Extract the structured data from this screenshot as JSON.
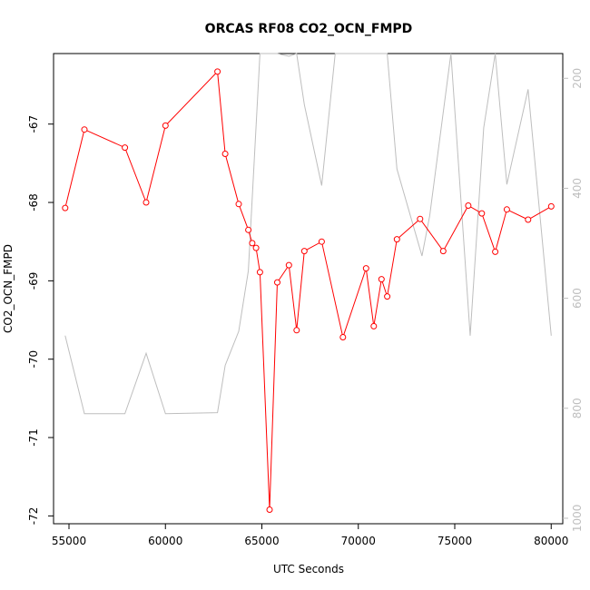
{
  "chart_data": {
    "type": "line",
    "title": "ORCAS RF08 CO2_OCN_FMPD",
    "xlabel": "UTC Seconds",
    "ylabel": "CO2_OCN_FMPD",
    "xlim": [
      54200,
      80600
    ],
    "ylim": [
      -72.1,
      -66.1
    ],
    "x_ticks": [
      "55000",
      "60000",
      "65000",
      "70000",
      "75000",
      "80000"
    ],
    "x_tick_values": [
      55000,
      60000,
      65000,
      70000,
      75000,
      80000
    ],
    "y_ticks": [
      "-72",
      "-71",
      "-70",
      "-69",
      "-68",
      "-67"
    ],
    "y_tick_values": [
      -72,
      -71,
      -70,
      -69,
      -68,
      -67
    ],
    "y2_ticks": [
      "200",
      "400",
      "600",
      "800",
      "1000"
    ],
    "y2_tick_values": [
      200,
      400,
      600,
      800,
      1000
    ],
    "y2lim": [
      1010,
      155
    ],
    "y2_reversed": true,
    "grid": false,
    "series": [
      {
        "axis": "left",
        "color": "#ff0000",
        "marker": "open-circle",
        "x": [
          54800,
          55800,
          57900,
          59000,
          60000,
          62700,
          63100,
          63800,
          64300,
          64500,
          64700,
          64900,
          65400,
          65800,
          66400,
          66800,
          67200,
          68100,
          69200,
          70400,
          70800,
          71200,
          71500,
          72000,
          73200,
          74400,
          75700,
          76400,
          77100,
          77700,
          78800,
          80000
        ],
        "y": [
          -68.07,
          -67.07,
          -67.3,
          -68.0,
          -67.02,
          -66.33,
          -67.38,
          -68.02,
          -68.35,
          -68.52,
          -68.58,
          -68.89,
          -71.92,
          -69.02,
          -68.8,
          -69.63,
          -68.62,
          -68.5,
          -69.72,
          -68.84,
          -69.58,
          -68.98,
          -69.2,
          -68.47,
          -68.21,
          -68.62,
          -68.04,
          -68.14,
          -68.63,
          -68.09,
          -68.22,
          -68.05
        ]
      },
      {
        "axis": "right",
        "color": "#bebebe",
        "marker": "none",
        "x": [
          54800,
          55800,
          57900,
          59000,
          60000,
          62700,
          63100,
          63800,
          64300,
          64900,
          65100,
          65400,
          65800,
          66400,
          66800,
          67200,
          68100,
          68800,
          69700,
          70400,
          71500,
          72000,
          73300,
          73700,
          74800,
          75800,
          76500,
          77100,
          77700,
          78800,
          80000
        ],
        "y": [
          668,
          810,
          810,
          700,
          810,
          808,
          722,
          660,
          550,
          120,
          120,
          120,
          148,
          160,
          120,
          248,
          395,
          120,
          120,
          155,
          120,
          365,
          523,
          450,
          120,
          668,
          290,
          120,
          393,
          220,
          668
        ]
      }
    ]
  }
}
